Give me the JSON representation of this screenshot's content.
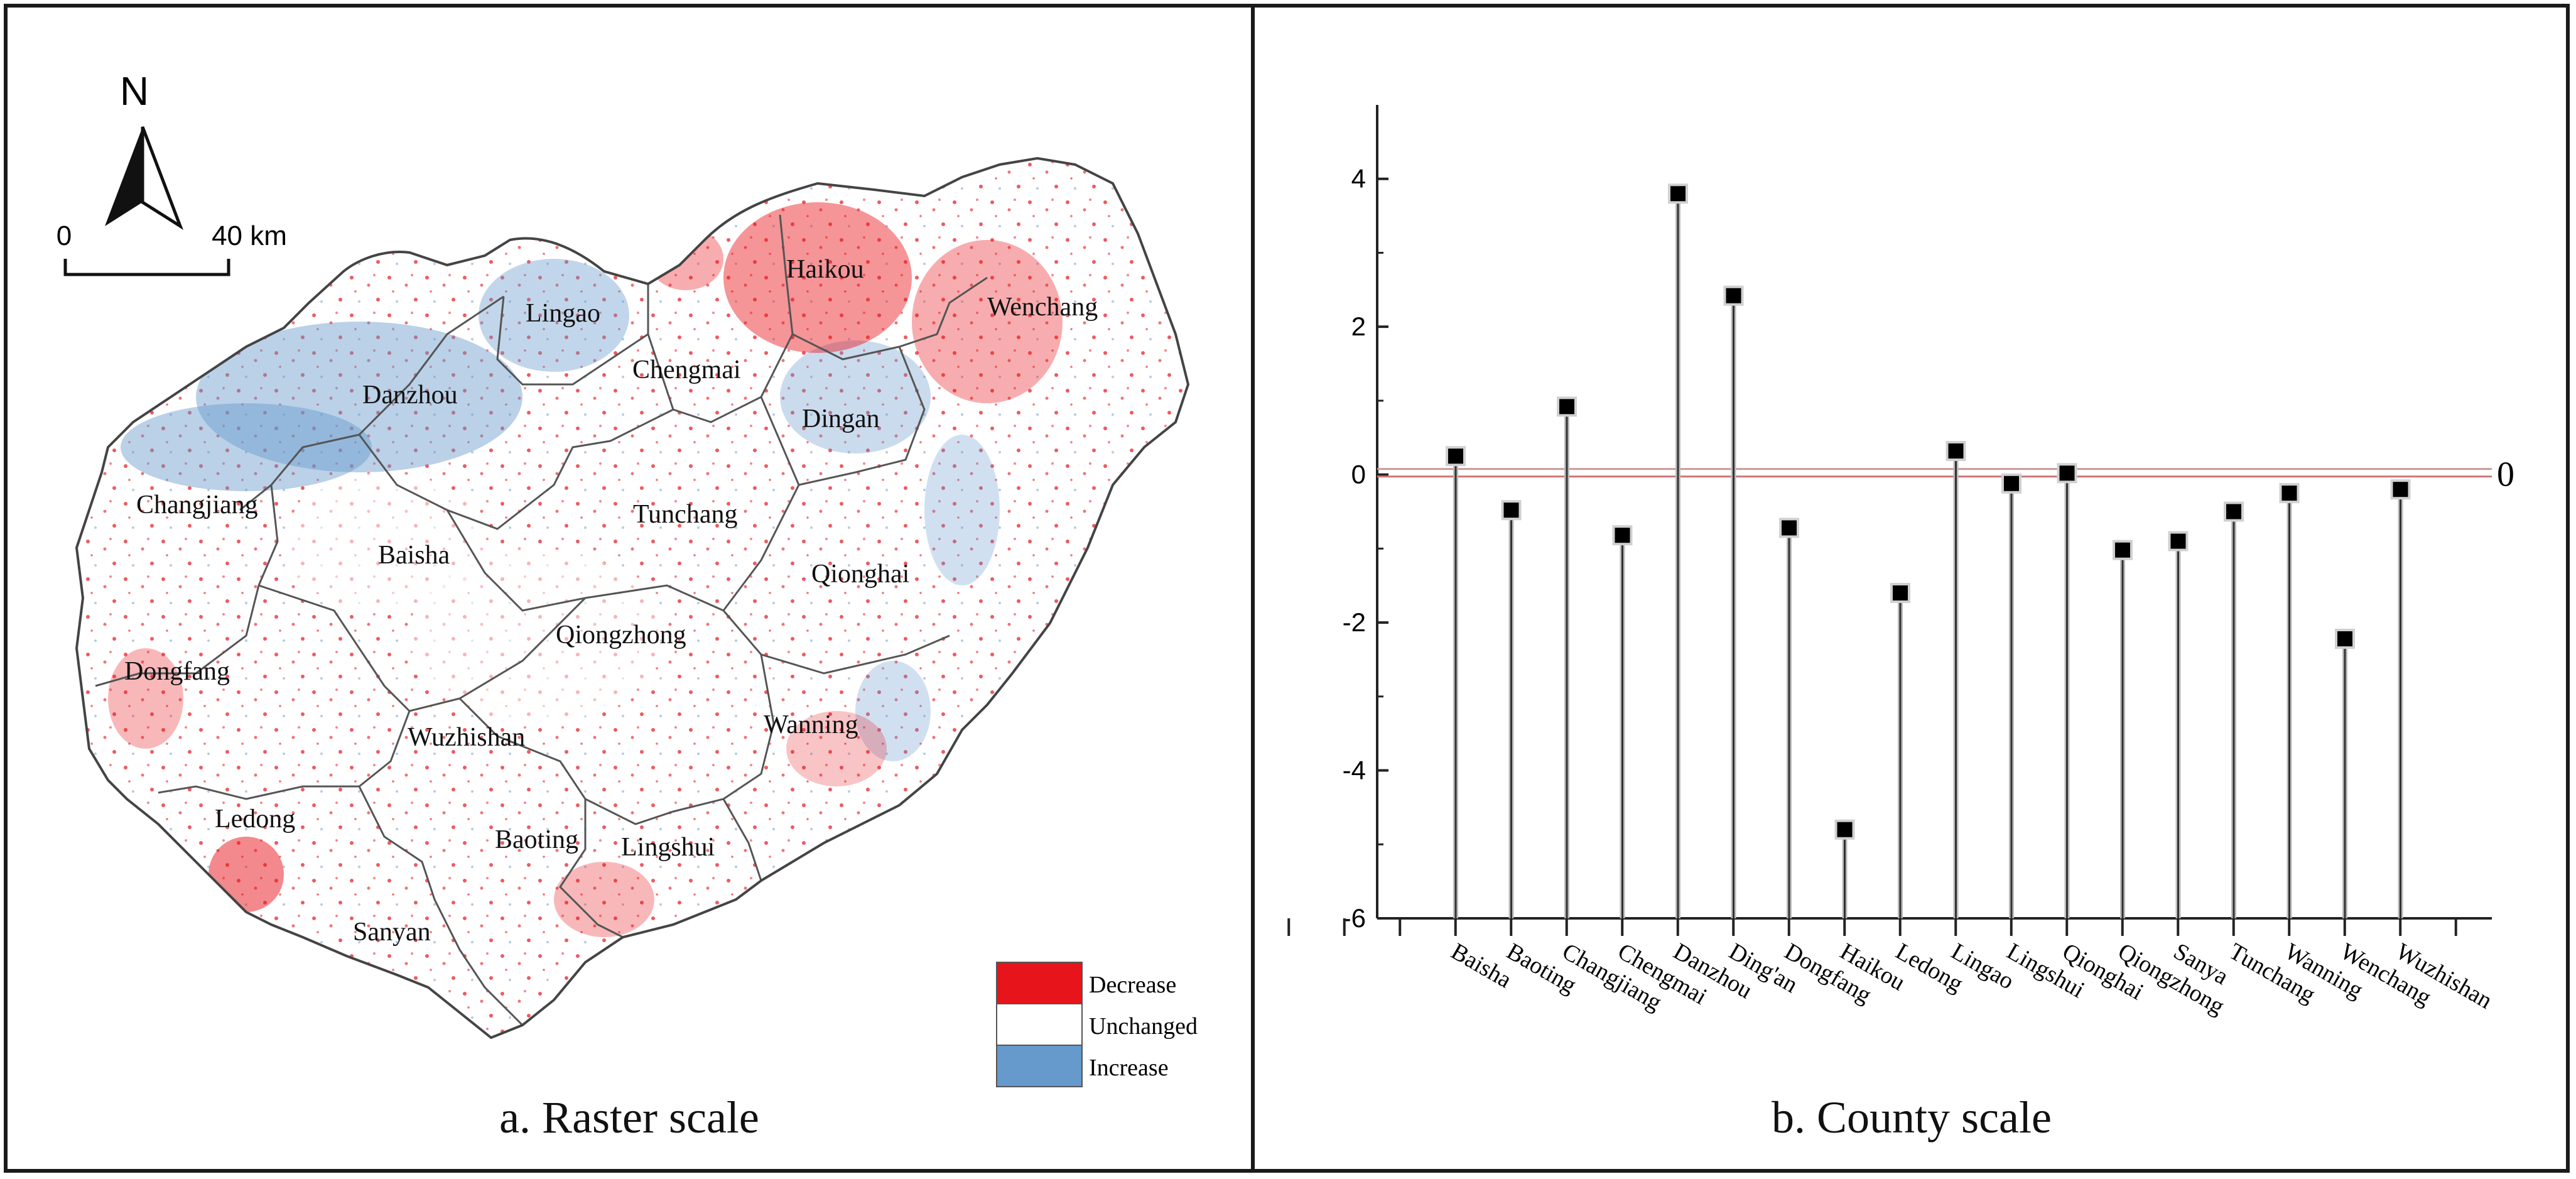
{
  "panel_a": {
    "caption": "a. Raster scale",
    "north_label": "N",
    "scale_start": "0",
    "scale_end": "40 km",
    "legend": [
      {
        "label": "Decrease",
        "color": "#e8141b"
      },
      {
        "label": "Unchanged",
        "color": "#ffffff"
      },
      {
        "label": "Increase",
        "color": "#6699cc"
      }
    ],
    "counties": [
      "Haikou",
      "Wenchang",
      "Lingao",
      "Chengmai",
      "Danzhou",
      "Dingan",
      "Changjiang",
      "Tunchang",
      "Baisha",
      "Qionghai",
      "Qiongzhong",
      "Dongfang",
      "Wanning",
      "Wuzhishan",
      "Ledong",
      "Baoting",
      "Lingshui",
      "Sanyan"
    ]
  },
  "panel_b": {
    "caption": "b.  County scale",
    "zero_label": "0"
  },
  "chart_data": {
    "type": "scatter",
    "style": "stem",
    "title": "b.  County scale",
    "xlabel": "",
    "ylabel": "",
    "ylim": [
      -6,
      5
    ],
    "yticks": [
      4,
      2,
      0,
      -2,
      -4,
      -6
    ],
    "reference_line": 0,
    "categories": [
      "Baisha",
      "Baoting",
      "Changjiang",
      "Chengmai",
      "Danzhou",
      "Ding'an",
      "Dongfang",
      "Haikou",
      "Ledong",
      "Lingao",
      "Lingshui",
      "Qionghai",
      "Qiongzhong",
      "Sanya",
      "Tunchang",
      "Wanning",
      "Wenchang",
      "Wuzhishan"
    ],
    "values": [
      0.25,
      -0.48,
      0.92,
      -0.82,
      3.8,
      2.42,
      -0.72,
      -4.8,
      -1.6,
      0.32,
      -0.12,
      0.02,
      -1.02,
      -0.9,
      -0.5,
      -0.25,
      -2.22,
      -0.2
    ]
  }
}
